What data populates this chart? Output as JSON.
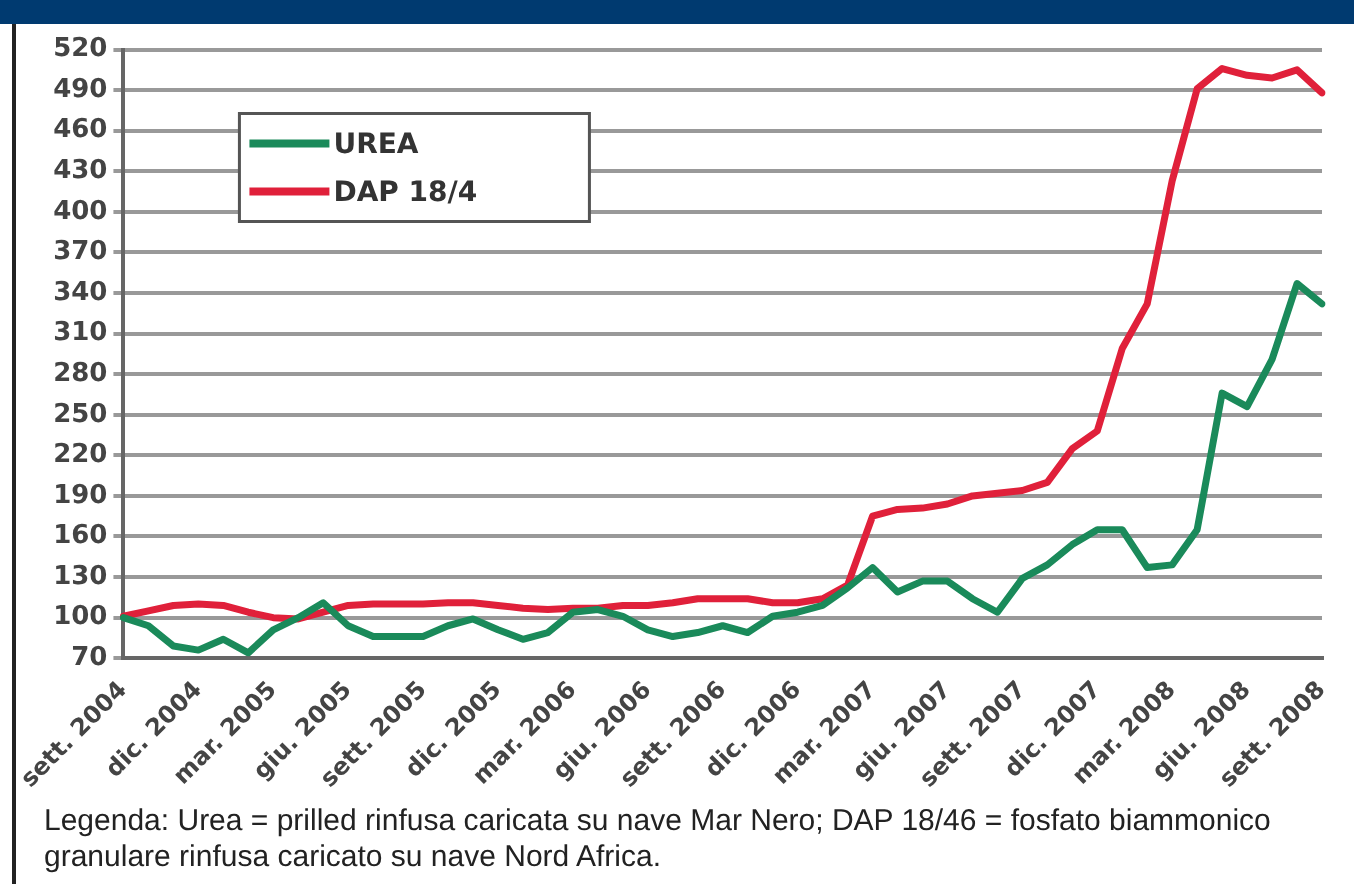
{
  "chart_data": {
    "type": "line",
    "categories": [
      "sett. 2004",
      null,
      null,
      "dic. 2004",
      null,
      null,
      "mar. 2005",
      null,
      null,
      "giu. 2005",
      null,
      null,
      "sett. 2005",
      null,
      null,
      "dic. 2005",
      null,
      null,
      "mar. 2006",
      null,
      null,
      "giu. 2006",
      null,
      null,
      "sett. 2006",
      null,
      null,
      "dic. 2006",
      null,
      null,
      "mar. 2007",
      null,
      null,
      "giu. 2007",
      null,
      null,
      "sett. 2007",
      null,
      null,
      "dic. 2007",
      null,
      null,
      "mar. 2008",
      null,
      null,
      "giu. 2008",
      null,
      null,
      "sett. 2008"
    ],
    "series": [
      {
        "name": "UREA",
        "color": "#1a8a5a",
        "values": [
          100,
          94,
          79,
          76,
          84,
          74,
          91,
          100,
          111,
          94,
          86,
          86,
          86,
          94,
          99,
          91,
          84,
          89,
          104,
          106,
          101,
          91,
          86,
          89,
          94,
          89,
          101,
          104,
          109,
          122,
          137,
          119,
          127,
          127,
          114,
          104,
          129,
          139,
          154,
          165,
          165,
          137,
          139,
          165,
          266,
          256,
          291,
          347,
          332
        ]
      },
      {
        "name": "DAP 18/4",
        "color": "#e0203a",
        "values": [
          101,
          105,
          109,
          110,
          109,
          104,
          100,
          99,
          104,
          109,
          110,
          110,
          110,
          111,
          111,
          109,
          107,
          106,
          107,
          107,
          109,
          109,
          111,
          114,
          114,
          114,
          111,
          111,
          114,
          124,
          175,
          180,
          181,
          184,
          190,
          192,
          194,
          200,
          225,
          238,
          299,
          332,
          423,
          491,
          506,
          501,
          499,
          505,
          488
        ]
      }
    ],
    "ylim": [
      70,
      520
    ],
    "yticks": [
      70,
      100,
      130,
      160,
      190,
      220,
      250,
      280,
      310,
      340,
      370,
      400,
      430,
      460,
      490,
      520
    ],
    "grid": "y",
    "legend": "top left",
    "marker": "none",
    "line_style": "solid",
    "annotations": [
      "Legenda: Urea = prilled rinfusa caricata su nave Mar Nero; DAP 18/46 = fosfato biammonico granulare rinfusa caricato su nave Nord Africa."
    ]
  }
}
